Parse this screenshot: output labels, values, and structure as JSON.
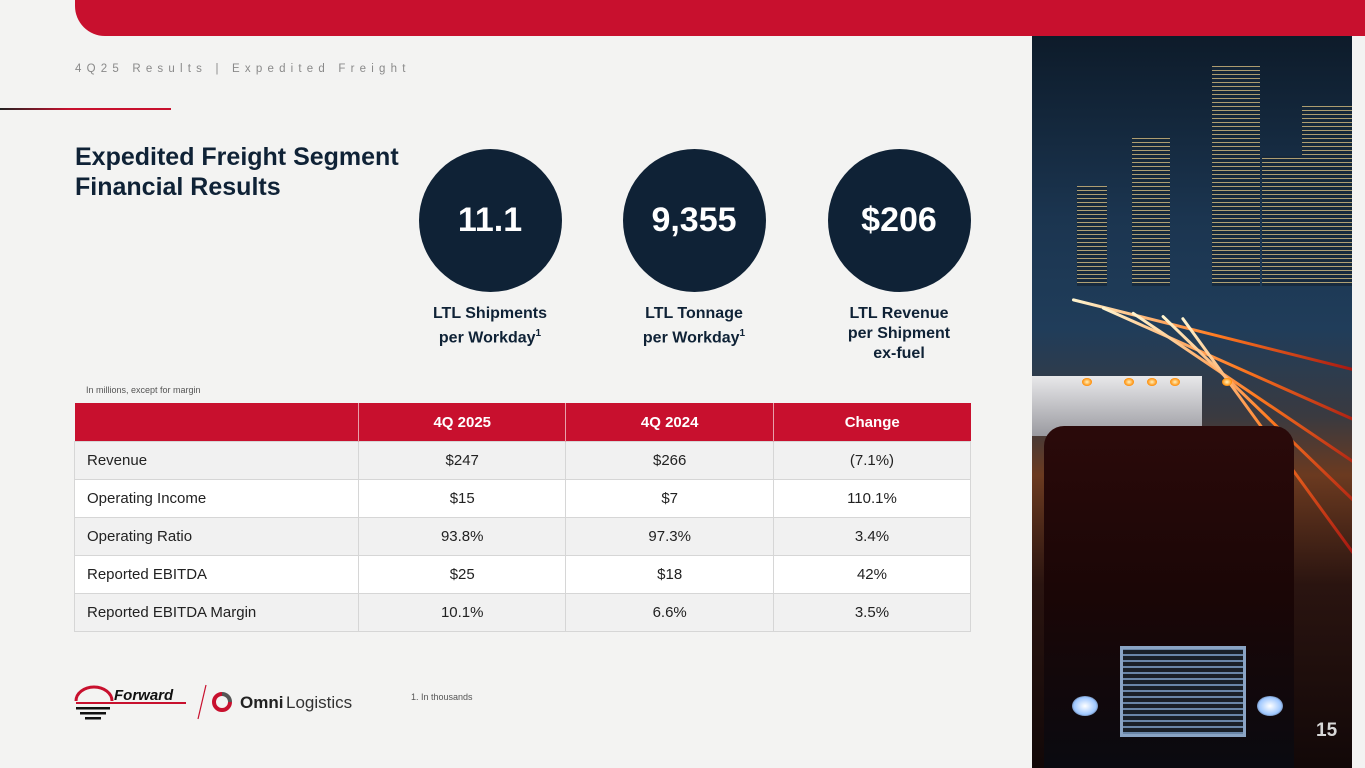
{
  "header": {
    "kicker": "4Q25 Results | Expedited Freight",
    "title_line1": "Expedited Freight Segment",
    "title_line2": "Financial Results"
  },
  "kpis": [
    {
      "value": "11.1",
      "label_line1": "LTL Shipments",
      "label_line2": "per Workday",
      "footnote": "1"
    },
    {
      "value": "9,355",
      "label_line1": "LTL Tonnage",
      "label_line2": "per Workday",
      "footnote": "1"
    },
    {
      "value": "$206",
      "label_line1": "LTL Revenue",
      "label_line2": "per Shipment",
      "label_line3": "ex-fuel"
    }
  ],
  "table": {
    "note": "In millions, except for margin",
    "headers": [
      "",
      "4Q 2025",
      "4Q 2024",
      "Change"
    ],
    "rows": [
      [
        "Revenue",
        "$247",
        "$266",
        "(7.1%)"
      ],
      [
        "Operating Income",
        "$15",
        "$7",
        "110.1%"
      ],
      [
        "Operating Ratio",
        "93.8%",
        "97.3%",
        "3.4%"
      ],
      [
        "Reported EBITDA",
        "$25",
        "$18",
        "42%"
      ],
      [
        "Reported EBITDA Margin",
        "10.1%",
        "6.6%",
        "3.5%"
      ]
    ]
  },
  "footnote": "1.  In thousands",
  "logos": {
    "forward": "Forward",
    "omni": "Omni Logistics"
  },
  "page_number": "15",
  "colors": {
    "brand_red": "#c8102e",
    "navy": "#0f2236"
  }
}
